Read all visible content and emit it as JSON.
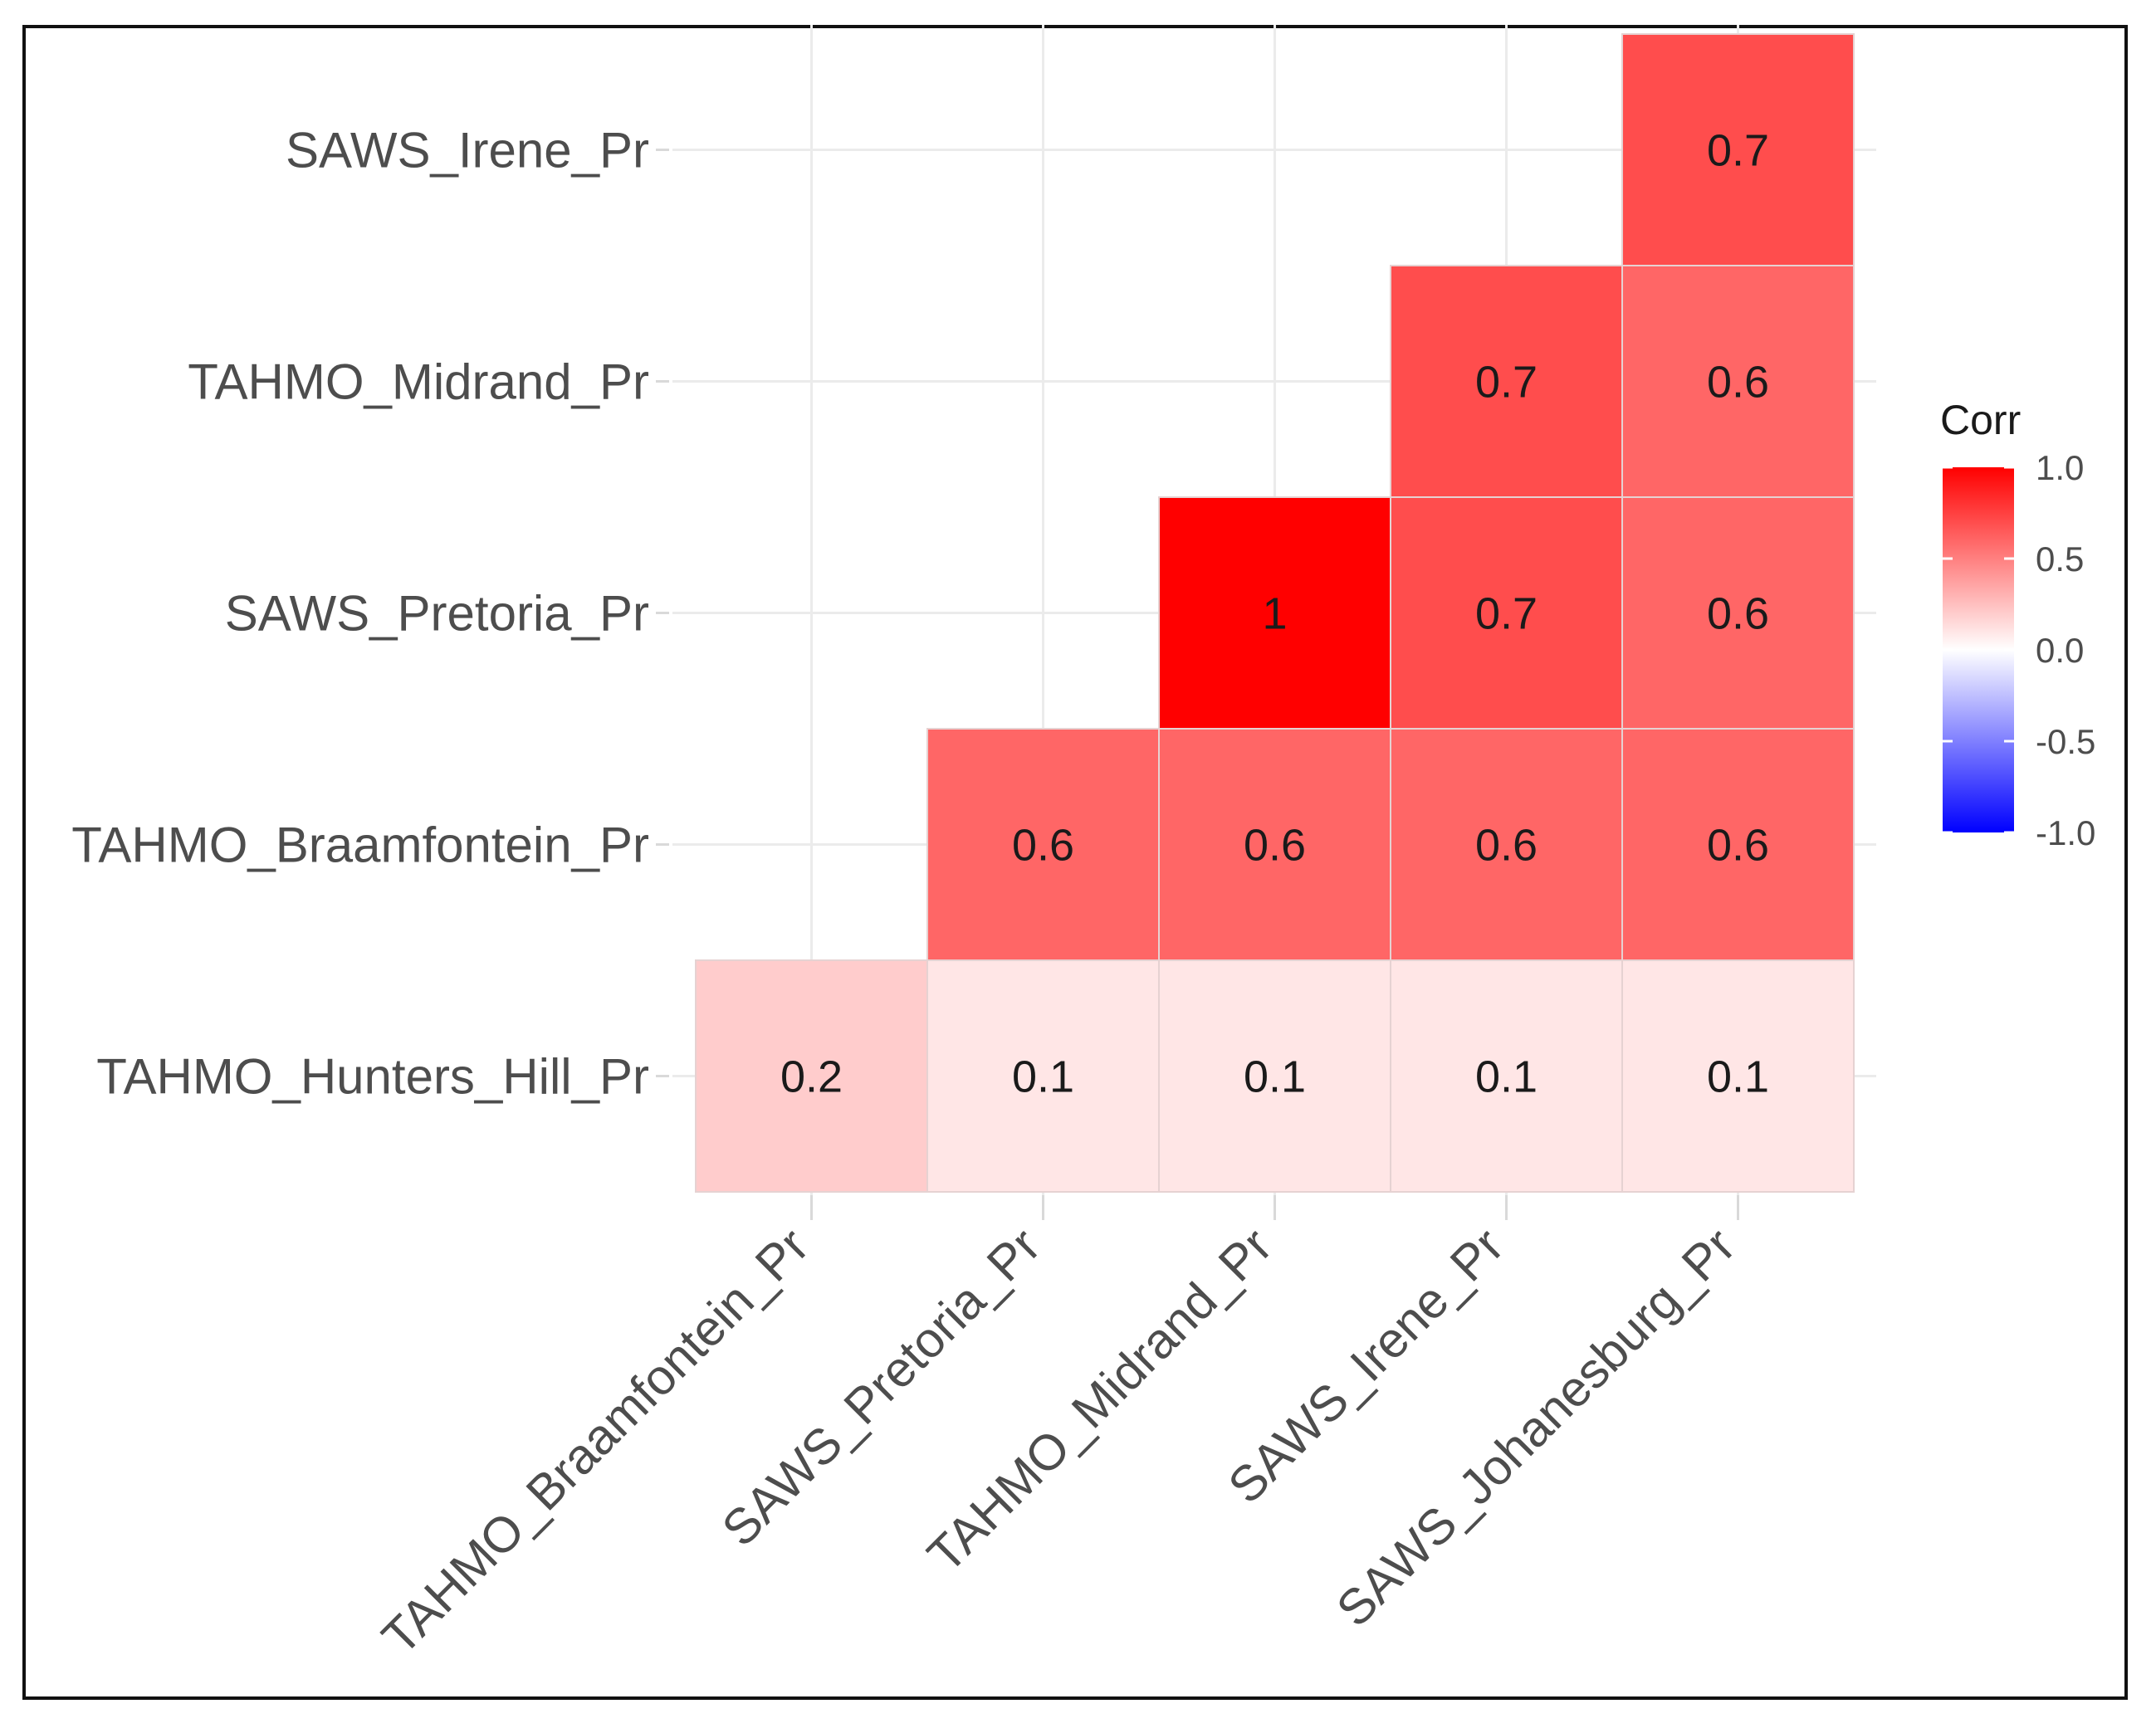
{
  "chart_data": {
    "type": "heatmap",
    "title": "",
    "xlabel": "",
    "ylabel": "",
    "x_categories": [
      "TAHMO_Braamfontein_Pr",
      "SAWS_Pretoria_Pr",
      "TAHMO_Midrand_Pr",
      "SAWS_Irene_Pr",
      "SAWS_Johanesburg_Pr"
    ],
    "y_categories": [
      "TAHMO_Hunters_Hill_Pr",
      "TAHMO_Braamfontein_Pr",
      "SAWS_Pretoria_Pr",
      "TAHMO_Midrand_Pr",
      "SAWS_Irene_Pr"
    ],
    "cells": [
      {
        "x": "TAHMO_Braamfontein_Pr",
        "y": "TAHMO_Hunters_Hill_Pr",
        "value": 0.2,
        "label": "0.2"
      },
      {
        "x": "SAWS_Pretoria_Pr",
        "y": "TAHMO_Hunters_Hill_Pr",
        "value": 0.1,
        "label": "0.1"
      },
      {
        "x": "TAHMO_Midrand_Pr",
        "y": "TAHMO_Hunters_Hill_Pr",
        "value": 0.1,
        "label": "0.1"
      },
      {
        "x": "SAWS_Irene_Pr",
        "y": "TAHMO_Hunters_Hill_Pr",
        "value": 0.1,
        "label": "0.1"
      },
      {
        "x": "SAWS_Johanesburg_Pr",
        "y": "TAHMO_Hunters_Hill_Pr",
        "value": 0.1,
        "label": "0.1"
      },
      {
        "x": "SAWS_Pretoria_Pr",
        "y": "TAHMO_Braamfontein_Pr",
        "value": 0.6,
        "label": "0.6"
      },
      {
        "x": "TAHMO_Midrand_Pr",
        "y": "TAHMO_Braamfontein_Pr",
        "value": 0.6,
        "label": "0.6"
      },
      {
        "x": "SAWS_Irene_Pr",
        "y": "TAHMO_Braamfontein_Pr",
        "value": 0.6,
        "label": "0.6"
      },
      {
        "x": "SAWS_Johanesburg_Pr",
        "y": "TAHMO_Braamfontein_Pr",
        "value": 0.6,
        "label": "0.6"
      },
      {
        "x": "TAHMO_Midrand_Pr",
        "y": "SAWS_Pretoria_Pr",
        "value": 1.0,
        "label": "1"
      },
      {
        "x": "SAWS_Irene_Pr",
        "y": "SAWS_Pretoria_Pr",
        "value": 0.7,
        "label": "0.7"
      },
      {
        "x": "SAWS_Johanesburg_Pr",
        "y": "SAWS_Pretoria_Pr",
        "value": 0.6,
        "label": "0.6"
      },
      {
        "x": "SAWS_Irene_Pr",
        "y": "TAHMO_Midrand_Pr",
        "value": 0.7,
        "label": "0.7"
      },
      {
        "x": "SAWS_Johanesburg_Pr",
        "y": "TAHMO_Midrand_Pr",
        "value": 0.6,
        "label": "0.6"
      },
      {
        "x": "SAWS_Johanesburg_Pr",
        "y": "SAWS_Irene_Pr",
        "value": 0.7,
        "label": "0.7"
      }
    ],
    "legend": {
      "title": "Corr",
      "range": [
        -1.0,
        1.0
      ],
      "ticks": [
        {
          "value": 1.0,
          "label": "1.0"
        },
        {
          "value": 0.5,
          "label": "0.5"
        },
        {
          "value": 0.0,
          "label": "0.0"
        },
        {
          "value": -0.5,
          "label": "-0.5"
        },
        {
          "value": -1.0,
          "label": "-1.0"
        }
      ],
      "colors": {
        "low": "#0000ff",
        "mid": "#ffffff",
        "high": "#ff0000"
      },
      "placement": "right"
    },
    "grid": true
  }
}
